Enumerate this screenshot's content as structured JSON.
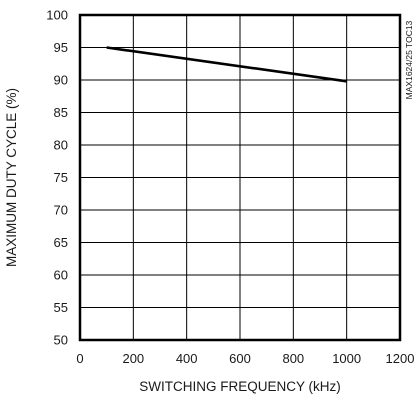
{
  "chart_data": {
    "type": "line",
    "xlabel": "SWITCHING FREQUENCY (kHz)",
    "ylabel": "MAXIMUM DUTY CYCLE (%)",
    "xlim": [
      0,
      1200
    ],
    "ylim": [
      50,
      100
    ],
    "x_ticks": [
      0,
      200,
      400,
      600,
      800,
      1000,
      1200
    ],
    "y_ticks": [
      50,
      55,
      60,
      65,
      70,
      75,
      80,
      85,
      90,
      95,
      100
    ],
    "grid": true,
    "series": [
      {
        "x": [
          100,
          1000
        ],
        "y": [
          95,
          89.8
        ]
      }
    ],
    "side_code": "MAX1624/25 TOC13"
  }
}
